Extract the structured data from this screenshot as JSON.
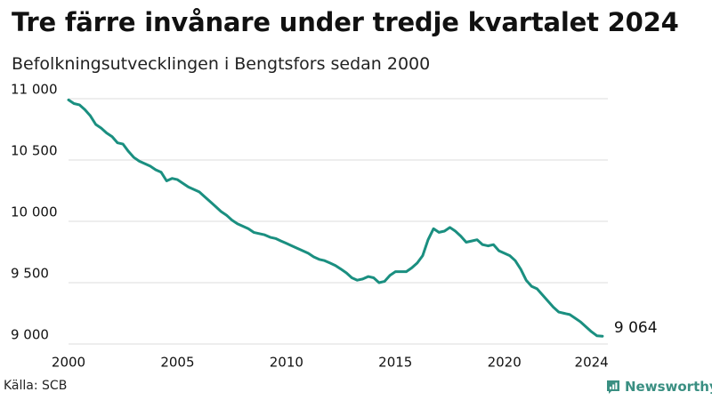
{
  "title": "Tre färre invånare under tredje kvartalet 2024",
  "subtitle": "Befolkningsutvecklingen i Bengtsfors sedan 2000",
  "source": "Källa: SCB",
  "brand": "Newsworthy",
  "colors": {
    "line": "#1a8f80",
    "grid": "#dddddd",
    "brand": "#3a8f82"
  },
  "chart_data": {
    "type": "line",
    "title": "Tre färre invånare under tredje kvartalet 2024",
    "subtitle": "Befolkningsutvecklingen i Bengtsfors sedan 2000",
    "xlabel": "",
    "ylabel": "",
    "xlim": [
      2000,
      2024.75
    ],
    "ylim": [
      9000,
      11000
    ],
    "x_ticks": [
      2000,
      2005,
      2010,
      2015,
      2020,
      2024
    ],
    "x_tick_labels": [
      "2000",
      "2005",
      "2010",
      "2015",
      "2020",
      "2024"
    ],
    "y_ticks": [
      9000,
      9500,
      10000,
      10500,
      11000
    ],
    "y_tick_labels": [
      "9 000",
      "9 500",
      "10 000",
      "10 500",
      "11 000"
    ],
    "grid": "horizontal",
    "end_label": "9 064",
    "x": [
      2000.0,
      2000.25,
      2000.5,
      2000.75,
      2001.0,
      2001.25,
      2001.5,
      2001.75,
      2002.0,
      2002.25,
      2002.5,
      2002.75,
      2003.0,
      2003.25,
      2003.5,
      2003.75,
      2004.0,
      2004.25,
      2004.5,
      2004.75,
      2005.0,
      2005.25,
      2005.5,
      2005.75,
      2006.0,
      2006.25,
      2006.5,
      2006.75,
      2007.0,
      2007.25,
      2007.5,
      2007.75,
      2008.0,
      2008.25,
      2008.5,
      2008.75,
      2009.0,
      2009.25,
      2009.5,
      2009.75,
      2010.0,
      2010.25,
      2010.5,
      2010.75,
      2011.0,
      2011.25,
      2011.5,
      2011.75,
      2012.0,
      2012.25,
      2012.5,
      2012.75,
      2013.0,
      2013.25,
      2013.5,
      2013.75,
      2014.0,
      2014.25,
      2014.5,
      2014.75,
      2015.0,
      2015.25,
      2015.5,
      2015.75,
      2016.0,
      2016.25,
      2016.5,
      2016.75,
      2017.0,
      2017.25,
      2017.5,
      2017.75,
      2018.0,
      2018.25,
      2018.5,
      2018.75,
      2019.0,
      2019.25,
      2019.5,
      2019.75,
      2020.0,
      2020.25,
      2020.5,
      2020.75,
      2021.0,
      2021.25,
      2021.5,
      2021.75,
      2022.0,
      2022.25,
      2022.5,
      2022.75,
      2023.0,
      2023.25,
      2023.5,
      2023.75,
      2024.0,
      2024.25,
      2024.5
    ],
    "series": [
      {
        "values": [
          10990,
          10960,
          10950,
          10910,
          10860,
          10790,
          10760,
          10720,
          10690,
          10640,
          10630,
          10570,
          10520,
          10490,
          10470,
          10450,
          10420,
          10400,
          10330,
          10350,
          10340,
          10310,
          10280,
          10260,
          10240,
          10200,
          10160,
          10120,
          10080,
          10050,
          10010,
          9980,
          9960,
          9940,
          9910,
          9900,
          9890,
          9870,
          9860,
          9840,
          9820,
          9800,
          9780,
          9760,
          9740,
          9710,
          9690,
          9680,
          9660,
          9640,
          9610,
          9580,
          9540,
          9520,
          9530,
          9550,
          9540,
          9500,
          9510,
          9560,
          9590,
          9590,
          9590,
          9620,
          9660,
          9720,
          9850,
          9940,
          9910,
          9920,
          9950,
          9920,
          9880,
          9830,
          9840,
          9850,
          9810,
          9800,
          9810,
          9760,
          9740,
          9720,
          9680,
          9610,
          9520,
          9470,
          9450,
          9400,
          9350,
          9300,
          9260,
          9250,
          9240,
          9210,
          9180,
          9140,
          9100,
          9067,
          9064
        ]
      }
    ]
  }
}
